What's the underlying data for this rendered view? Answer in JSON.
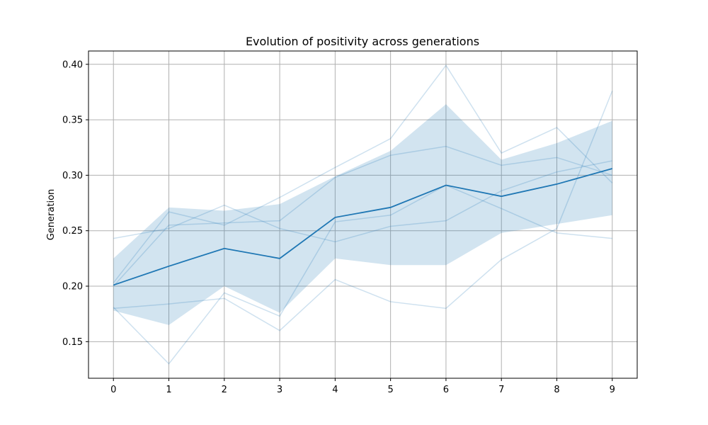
{
  "colors": {
    "mean_line": "#1f77b4",
    "band_fill": "#1f77b4",
    "individual_line": "#1f77b4",
    "grid": "#b0b0b0",
    "axes": "#000000"
  },
  "chart_data": {
    "type": "line",
    "title": "Evolution of positivity across generations",
    "xlabel": "",
    "ylabel": "Generation",
    "x": [
      0,
      1,
      2,
      3,
      4,
      5,
      6,
      7,
      8,
      9
    ],
    "xlim": [
      -0.45,
      9.45
    ],
    "ylim": [
      0.117,
      0.412
    ],
    "yticks": [
      0.15,
      0.2,
      0.25,
      0.3,
      0.35,
      0.4
    ],
    "ytick_labels": [
      "0.15",
      "0.20",
      "0.25",
      "0.30",
      "0.35",
      "0.40"
    ],
    "grid": true,
    "mean": [
      0.201,
      0.218,
      0.234,
      0.225,
      0.262,
      0.271,
      0.291,
      0.281,
      0.292,
      0.306
    ],
    "band_upper": [
      0.225,
      0.271,
      0.268,
      0.274,
      0.299,
      0.322,
      0.364,
      0.314,
      0.329,
      0.349
    ],
    "band_lower": [
      0.178,
      0.165,
      0.2,
      0.176,
      0.225,
      0.219,
      0.219,
      0.248,
      0.256,
      0.264
    ],
    "individual_runs": [
      [
        0.243,
        0.252,
        0.273,
        0.252,
        0.24,
        0.254,
        0.259,
        0.286,
        0.303,
        0.313
      ],
      [
        0.181,
        0.13,
        0.194,
        0.173,
        0.258,
        0.264,
        0.291,
        0.27,
        0.248,
        0.243
      ],
      [
        0.203,
        0.267,
        0.255,
        0.28,
        0.307,
        0.333,
        0.399,
        0.32,
        0.343,
        0.293
      ],
      [
        0.18,
        0.184,
        0.189,
        0.16,
        0.206,
        0.186,
        0.18,
        0.224,
        0.252,
        0.376
      ],
      [
        0.2,
        0.255,
        0.257,
        0.259,
        0.298,
        0.318,
        0.326,
        0.309,
        0.316,
        0.3
      ]
    ]
  }
}
